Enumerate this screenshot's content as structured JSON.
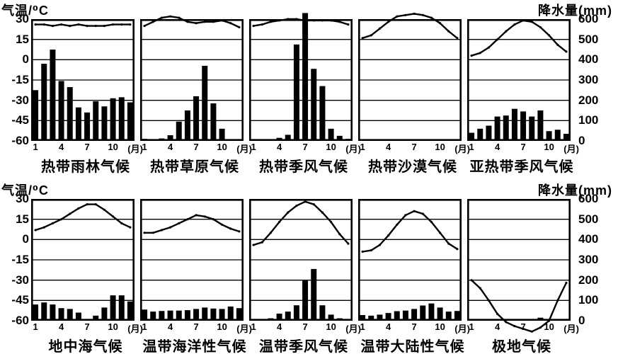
{
  "page": {
    "temp_axis_label": "气温/⁰C",
    "precip_axis_label": "降水量(mm)",
    "month_ticks": [
      "1",
      "4",
      "7",
      "10",
      "(月)"
    ],
    "temp_ticks": [
      "30",
      "15",
      "0",
      "-15",
      "-30",
      "-45",
      "-60"
    ],
    "precip_ticks": [
      "600",
      "500",
      "400",
      "300",
      "200",
      "100",
      "0"
    ],
    "line_color": "#000000",
    "bar_color": "#000000",
    "background_color": "#ffffff"
  },
  "axes": {
    "temperature": {
      "min": -60,
      "max": 30,
      "step": 15,
      "unit": "°C"
    },
    "precipitation": {
      "min": 0,
      "max": 600,
      "step": 100,
      "unit": "mm"
    },
    "months": [
      1,
      2,
      3,
      4,
      5,
      6,
      7,
      8,
      9,
      10,
      11,
      12
    ]
  },
  "chart_data": [
    {
      "type": "bar+line",
      "title": "热带雨林气候",
      "temperature_c": [
        26,
        26,
        25,
        26,
        25,
        26,
        25,
        25,
        25,
        26,
        26,
        26
      ],
      "precipitation_mm": [
        250,
        380,
        450,
        295,
        265,
        165,
        140,
        195,
        170,
        210,
        215,
        190
      ]
    },
    {
      "type": "bar+line",
      "title": "热带草原气候",
      "temperature_c": [
        25,
        28,
        31,
        32,
        31,
        28,
        27,
        28,
        28,
        29,
        27,
        24
      ],
      "precipitation_mm": [
        10,
        2,
        12,
        28,
        95,
        150,
        220,
        370,
        185,
        60,
        8,
        2
      ]
    },
    {
      "type": "bar+line",
      "title": "热带季风气候",
      "temperature_c": [
        25,
        26,
        28,
        29,
        30,
        30,
        29,
        29,
        29,
        29,
        28,
        26
      ],
      "precipitation_mm": [
        5,
        3,
        6,
        15,
        30,
        475,
        630,
        355,
        270,
        60,
        25,
        10
      ]
    },
    {
      "type": "bar+line",
      "title": "热带沙漠气候",
      "temperature_c": [
        16,
        18,
        23,
        28,
        32,
        33,
        34,
        33,
        31,
        27,
        21,
        16
      ],
      "precipitation_mm": [
        0,
        0,
        0,
        4,
        0,
        0,
        0,
        0,
        0,
        4,
        0,
        0
      ]
    },
    {
      "type": "bar+line",
      "title": "亚热带季风气候",
      "temperature_c": [
        3,
        5,
        9,
        15,
        21,
        26,
        29,
        28,
        24,
        18,
        11,
        6
      ],
      "precipitation_mm": [
        40,
        60,
        75,
        120,
        125,
        158,
        145,
        120,
        150,
        48,
        55,
        35
      ]
    },
    {
      "type": "bar+line",
      "title": "地中海气候",
      "temperature_c": [
        7,
        9,
        12,
        15,
        19,
        23,
        26,
        26,
        22,
        17,
        12,
        9
      ],
      "precipitation_mm": [
        80,
        90,
        80,
        62,
        58,
        40,
        5,
        25,
        65,
        125,
        125,
        95
      ]
    },
    {
      "type": "bar+line",
      "title": "温带海洋性气候",
      "temperature_c": [
        5,
        5,
        7,
        9,
        12,
        15,
        18,
        17,
        15,
        11,
        8,
        6
      ],
      "precipitation_mm": [
        55,
        45,
        48,
        50,
        50,
        52,
        58,
        65,
        60,
        58,
        70,
        62
      ]
    },
    {
      "type": "bar+line",
      "title": "温带季风气候",
      "temperature_c": [
        -4,
        -2,
        5,
        13,
        20,
        25,
        28,
        26,
        20,
        13,
        4,
        -3
      ],
      "precipitation_mm": [
        5,
        8,
        12,
        35,
        45,
        76,
        197,
        255,
        76,
        30,
        12,
        5
      ]
    },
    {
      "type": "bar+line",
      "title": "温带大陆性气候",
      "temperature_c": [
        -9,
        -8,
        -4,
        3,
        11,
        18,
        21,
        19,
        13,
        5,
        -3,
        -7
      ],
      "precipitation_mm": [
        28,
        25,
        30,
        38,
        47,
        50,
        58,
        75,
        85,
        65,
        45,
        48
      ]
    },
    {
      "type": "bar+line",
      "title": "极地气候",
      "temperature_c": [
        -30,
        -36,
        -45,
        -55,
        -61,
        -64,
        -66,
        -68,
        -65,
        -60,
        -45,
        -32
      ],
      "precipitation_mm": [
        0,
        0,
        0,
        0,
        5,
        8,
        5,
        5,
        15,
        8,
        5,
        0
      ]
    }
  ]
}
